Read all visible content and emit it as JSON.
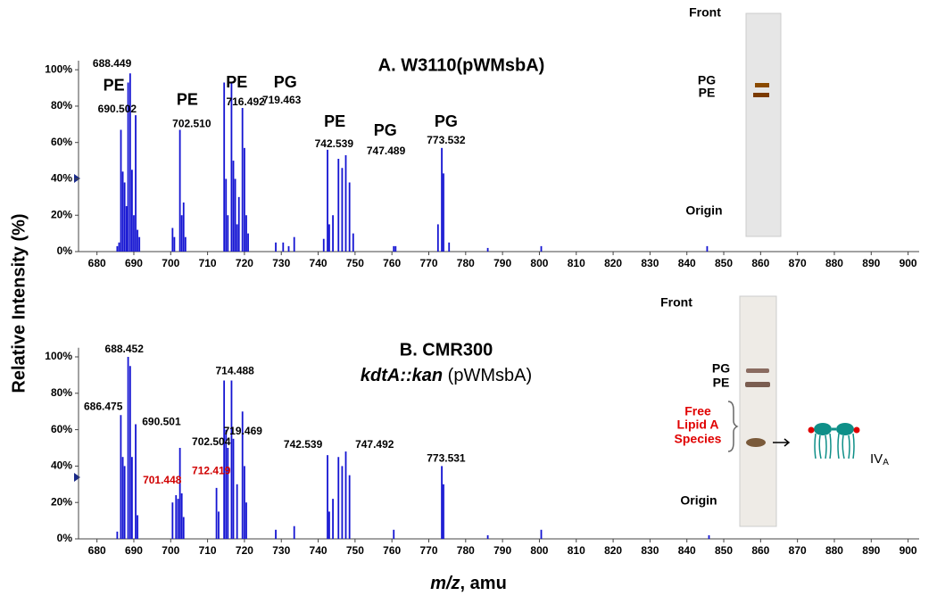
{
  "chart_data": [
    {
      "type": "bar",
      "title": "A. W3110(pWMsbA)",
      "color": "#1414d2",
      "xlim": [
        675,
        903
      ],
      "ylim": [
        0,
        105
      ],
      "xticks": [
        680,
        690,
        700,
        710,
        720,
        730,
        740,
        750,
        760,
        770,
        780,
        790,
        800,
        810,
        820,
        830,
        840,
        850,
        860,
        870,
        880,
        890,
        900
      ],
      "yticks": [
        {
          "value": 0,
          "label": "0%"
        },
        {
          "value": 20,
          "label": "20%"
        },
        {
          "value": 40,
          "label": "40%"
        },
        {
          "value": 60,
          "label": "60%"
        },
        {
          "value": 80,
          "label": "80%"
        },
        {
          "value": 100,
          "label": "100%"
        }
      ],
      "x": [
        685.5,
        686.0,
        686.5,
        687.0,
        687.5,
        688.0,
        688.45,
        689.0,
        689.5,
        690.0,
        690.5,
        691.0,
        691.5,
        700.5,
        701.0,
        702.5,
        703.0,
        703.5,
        704.0,
        714.5,
        715.0,
        715.5,
        716.49,
        717.0,
        717.5,
        718.0,
        718.5,
        719.46,
        720.0,
        720.5,
        721.0,
        728.5,
        730.5,
        732.0,
        733.5,
        741.5,
        742.54,
        743.0,
        744.0,
        745.5,
        746.5,
        747.49,
        748.5,
        749.5,
        760.5,
        761.0,
        772.5,
        773.53,
        774.0,
        775.5,
        786.0,
        800.5,
        845.5
      ],
      "values": [
        3,
        5,
        67,
        44,
        38,
        25,
        93,
        98,
        45,
        20,
        75,
        12,
        8,
        13,
        8,
        67,
        20,
        27,
        8,
        93,
        40,
        20,
        93,
        50,
        40,
        15,
        30,
        79,
        57,
        20,
        10,
        5,
        5,
        3,
        8,
        7,
        56,
        15,
        20,
        51,
        46,
        53,
        38,
        10,
        3,
        3,
        15,
        57,
        43,
        5,
        2,
        3,
        3
      ],
      "annotations": [
        {
          "text": "PE",
          "x": 684.6,
          "y": 91,
          "style": "lipid"
        },
        {
          "text": "688.449",
          "x": 684.1,
          "y": 103
        },
        {
          "text": "690.502",
          "x": 685.5,
          "y": 78
        },
        {
          "text": "PE",
          "x": 704.5,
          "y": 83,
          "style": "lipid"
        },
        {
          "text": "702.510",
          "x": 705.7,
          "y": 70
        },
        {
          "text": "PE",
          "x": 717.9,
          "y": 92.6,
          "style": "lipid"
        },
        {
          "text": "716.492",
          "x": 720.3,
          "y": 82
        },
        {
          "text": "PG",
          "x": 731.1,
          "y": 92.6,
          "style": "lipid"
        },
        {
          "text": "719.463",
          "x": 730.1,
          "y": 83
        },
        {
          "text": "PE",
          "x": 744.5,
          "y": 71,
          "style": "lipid"
        },
        {
          "text": "742.539",
          "x": 744.3,
          "y": 59
        },
        {
          "text": "PG",
          "x": 758.2,
          "y": 66,
          "style": "lipid"
        },
        {
          "text": "747.489",
          "x": 758.4,
          "y": 55
        },
        {
          "text": "PG",
          "x": 774.7,
          "y": 71,
          "style": "lipid"
        },
        {
          "text": "773.532",
          "x": 774.7,
          "y": 61
        }
      ]
    },
    {
      "type": "bar",
      "title": "B. CMR300",
      "title_line2": [
        "kdtA::kan",
        " (pWMsbA)"
      ],
      "color": "#1414d2",
      "ylabel": "Relative Intensity (%)",
      "xlabel": [
        "m/z",
        ", amu"
      ],
      "xlim": [
        675,
        903
      ],
      "ylim": [
        0,
        105
      ],
      "xticks": [
        680,
        690,
        700,
        710,
        720,
        730,
        740,
        750,
        760,
        770,
        780,
        790,
        800,
        810,
        820,
        830,
        840,
        850,
        860,
        870,
        880,
        890,
        900
      ],
      "yticks": [
        {
          "value": 0,
          "label": "0%"
        },
        {
          "value": 20,
          "label": "20%"
        },
        {
          "value": 40,
          "label": "40%"
        },
        {
          "value": 60,
          "label": "60%"
        },
        {
          "value": 80,
          "label": "80%"
        },
        {
          "value": 100,
          "label": "100%"
        }
      ],
      "x": [
        685.5,
        686.475,
        687.0,
        687.5,
        688.452,
        689.0,
        689.5,
        690.501,
        691.0,
        700.5,
        701.448,
        702.0,
        702.504,
        703.0,
        703.5,
        712.419,
        713.0,
        714.488,
        715.0,
        715.5,
        716.5,
        717.0,
        718.0,
        719.469,
        720.0,
        720.5,
        728.5,
        733.5,
        742.539,
        743.0,
        744.0,
        745.5,
        746.5,
        747.492,
        748.5,
        760.5,
        773.531,
        774.0,
        786.0,
        800.5,
        846.0
      ],
      "values": [
        4,
        68,
        45,
        40,
        100,
        95,
        45,
        63,
        13,
        20,
        24,
        22,
        50,
        25,
        12,
        28,
        15,
        87,
        60,
        50,
        87,
        55,
        30,
        70,
        40,
        20,
        5,
        7,
        46,
        15,
        22,
        45,
        40,
        48,
        35,
        5,
        40,
        30,
        2,
        5,
        2
      ],
      "annotations": [
        {
          "text": "688.452",
          "x": 687.4,
          "y": 104
        },
        {
          "text": "686.475",
          "x": 681.7,
          "y": 72.5
        },
        {
          "text": "690.501",
          "x": 697.5,
          "y": 64
        },
        {
          "text": "702.504",
          "x": 711,
          "y": 53
        },
        {
          "text": "701.448",
          "x": 697.7,
          "y": 32,
          "color": "#d00000"
        },
        {
          "text": "712.419",
          "x": 711,
          "y": 37,
          "color": "#d00000"
        },
        {
          "text": "714.488",
          "x": 717.4,
          "y": 92
        },
        {
          "text": "719.469",
          "x": 719.6,
          "y": 59
        },
        {
          "text": "742.539",
          "x": 735.9,
          "y": 51.5
        },
        {
          "text": "747.492",
          "x": 755.3,
          "y": 51.5
        },
        {
          "text": "773.531",
          "x": 774.7,
          "y": 44
        }
      ]
    }
  ],
  "tlc_a": {
    "front": "Front",
    "pg": "PG",
    "pe": "PE",
    "origin": "Origin"
  },
  "tlc_b": {
    "front": "Front",
    "pg": "PG",
    "pe": "PE",
    "free_lipid_a": [
      "Free",
      "Lipid A",
      "Species"
    ],
    "iva": [
      "IV",
      "A"
    ],
    "origin": "Origin"
  }
}
